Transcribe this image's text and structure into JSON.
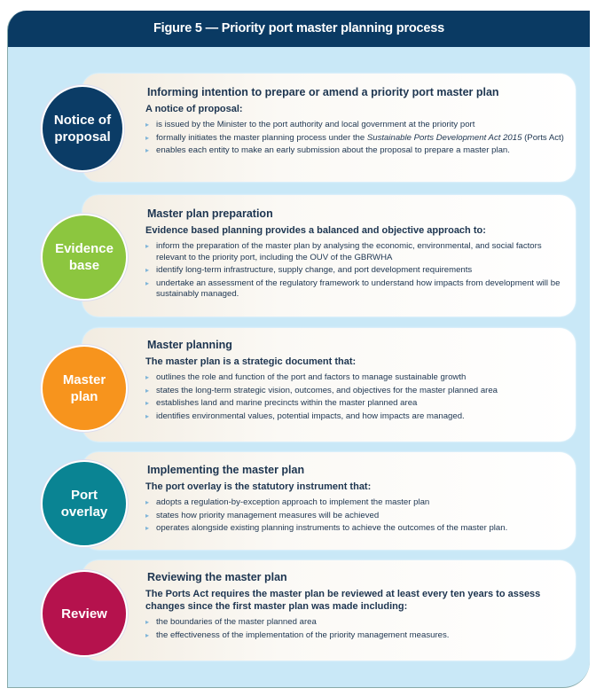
{
  "header": {
    "title": "Figure 5 — Priority port master planning process"
  },
  "steps": [
    {
      "label": "Notice of proposal",
      "color": "#0b3c66",
      "title": "Informing intention to prepare or amend a priority port master plan",
      "intro": "A notice of proposal:",
      "bullets": [
        "is issued by the Minister to the port authority and local government at the priority port",
        "formally initiates the master planning process under the",
        "enables each entity to make an early submission about the proposal to prepare a master plan."
      ],
      "bullet2_italic": "Sustainable Ports Development Act 2015",
      "bullet2_tail": "(Ports Act)"
    },
    {
      "label": "Evidence base",
      "color": "#8cc63f",
      "title": "Master plan preparation",
      "intro": "Evidence based planning provides a balanced and objective approach to:",
      "bullets": [
        "inform the preparation of the master plan by analysing the economic, environmental, and social factors relevant to the priority port, including the OUV of the GBRWHA",
        "identify long-term infrastructure, supply change, and port development requirements",
        "undertake an assessment of the regulatory framework to understand how impacts from development will be sustainably managed."
      ]
    },
    {
      "label": "Master plan",
      "color": "#f7941d",
      "title": "Master planning",
      "intro": "The master plan is a strategic document that:",
      "bullets": [
        "outlines the role and function of the port and factors to manage sustainable growth",
        "states the long-term strategic vision, outcomes, and objectives for the master planned area",
        "establishes land and marine precincts within the master planned area",
        "identifies environmental values, potential impacts, and how impacts are managed."
      ]
    },
    {
      "label": "Port overlay",
      "color": "#0a8493",
      "title": "Implementing the master plan",
      "intro": "The port overlay is the statutory instrument that:",
      "bullets": [
        "adopts a regulation-by-exception approach to implement the master plan",
        "states how priority management measures will be achieved",
        "operates alongside existing planning instruments to achieve the outcomes of the master plan."
      ]
    },
    {
      "label": "Review",
      "color": "#b5124d",
      "title": "Reviewing the master plan",
      "intro": "The Ports Act requires the master plan be reviewed at least every ten years to assess changes since the first master plan was made including:",
      "bullets": [
        "the boundaries of the master planned area",
        "the effectiveness of the implementation of the priority management measures."
      ]
    }
  ]
}
